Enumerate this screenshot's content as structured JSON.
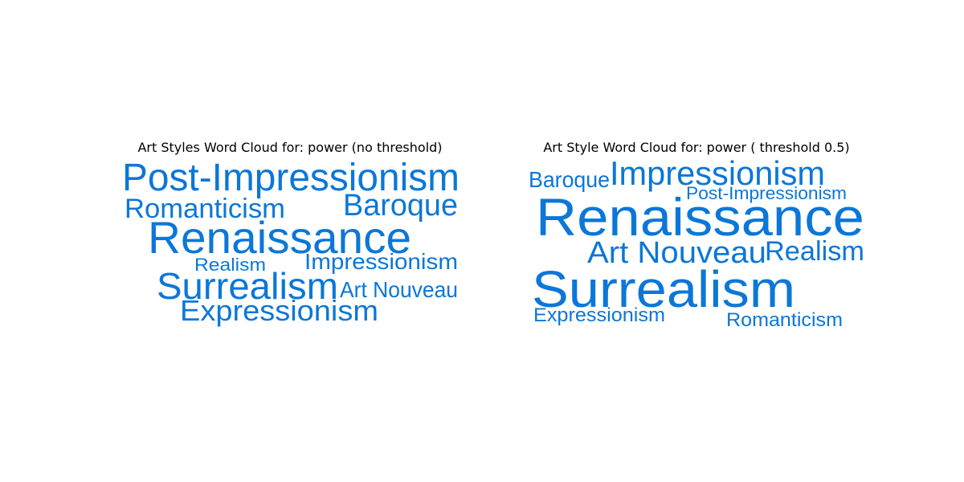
{
  "colors": {
    "word": "#0b77d8",
    "title": "#000000",
    "background": "#ffffff"
  },
  "chart_data": [
    {
      "type": "wordcloud",
      "title": "Art Styles Word Cloud for: power (no threshold)",
      "words": [
        {
          "text": "Post-Impressionism"
        },
        {
          "text": "Romanticism"
        },
        {
          "text": "Baroque"
        },
        {
          "text": "Renaissance"
        },
        {
          "text": "Realism"
        },
        {
          "text": "Impressionism"
        },
        {
          "text": "Surrealism"
        },
        {
          "text": "Art Nouveau"
        },
        {
          "text": "Expressionism"
        }
      ]
    },
    {
      "type": "wordcloud",
      "title": "Art Style Word Cloud for: power ( threshold 0.5)",
      "words": [
        {
          "text": "Baroque"
        },
        {
          "text": "Impressionism"
        },
        {
          "text": "Post-Impressionism"
        },
        {
          "text": "Renaissance"
        },
        {
          "text": "Art Nouveau"
        },
        {
          "text": "Realism"
        },
        {
          "text": "Surrealism"
        },
        {
          "text": "Expressionism"
        },
        {
          "text": "Romanticism"
        }
      ]
    }
  ]
}
